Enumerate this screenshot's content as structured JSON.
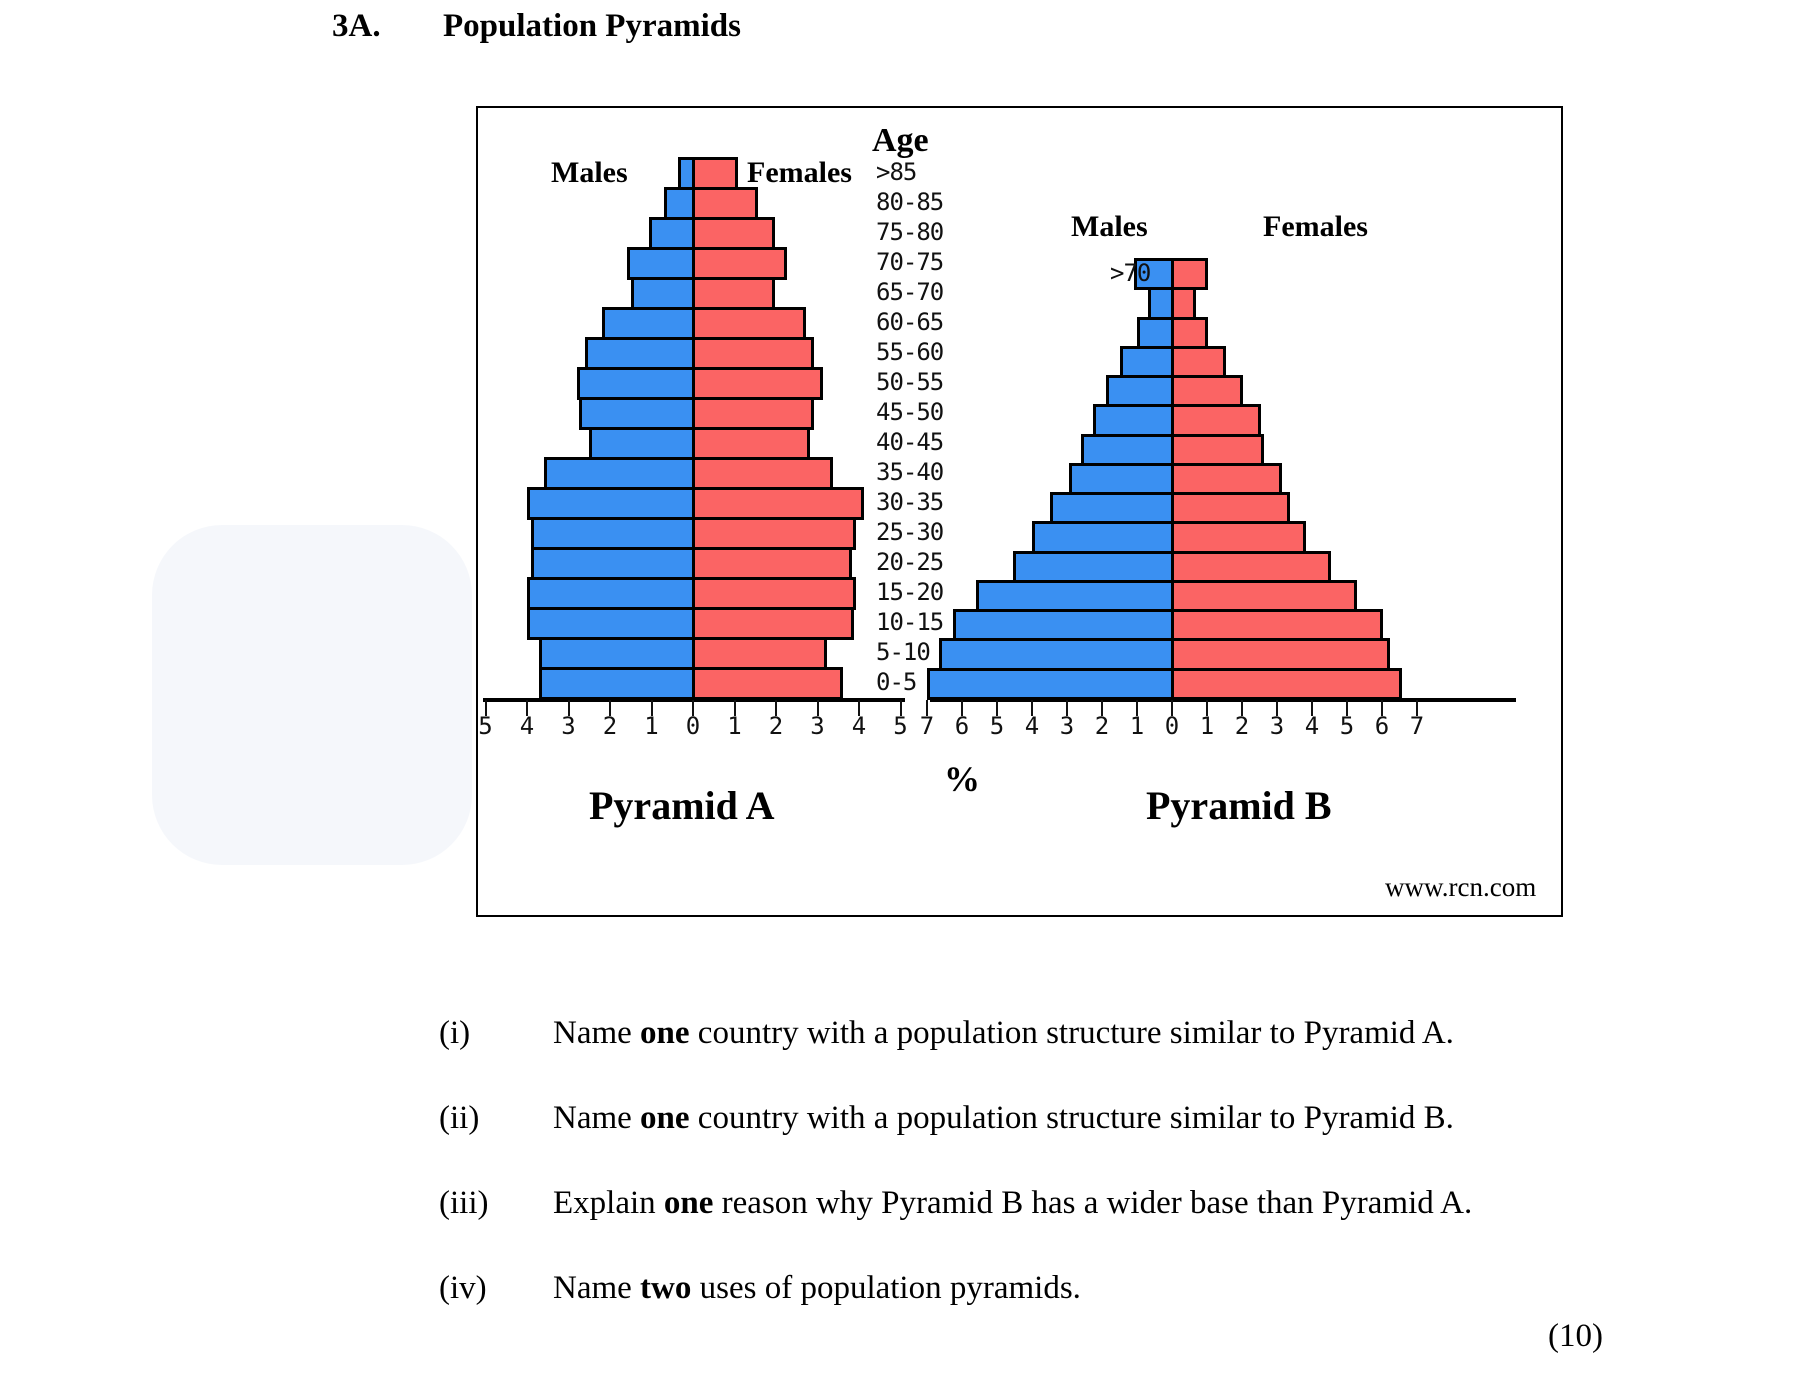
{
  "header": {
    "number": "3A.",
    "title": "Population Pyramids"
  },
  "figure": {
    "age_heading": "Age",
    "source": "www.rcn.com",
    "percent_label": "%",
    "colors": {
      "male": "#3a90f2",
      "female": "#fb6464"
    }
  },
  "chart_data": [
    {
      "type": "bar",
      "orientation": "horizontal-pyramid",
      "title": "Pyramid A",
      "xlabel": "%",
      "ylabel": "Age",
      "legend": [
        "Males",
        "Females"
      ],
      "xlim": [
        -5,
        5
      ],
      "x_ticks": [
        "5",
        "4",
        "3",
        "2",
        "1",
        "0",
        "1",
        "2",
        "3",
        "4",
        "5"
      ],
      "categories": [
        ">85",
        "80-85",
        "75-80",
        "70-75",
        "65-70",
        "60-65",
        "55-60",
        "50-55",
        "45-50",
        "40-45",
        "35-40",
        "30-35",
        "25-30",
        "20-25",
        "15-20",
        "10-15",
        "5-10",
        "0-5"
      ],
      "series": [
        {
          "name": "Males",
          "values": [
            0.35,
            0.7,
            1.05,
            1.6,
            1.5,
            2.2,
            2.6,
            2.8,
            2.75,
            2.5,
            3.6,
            4.0,
            3.9,
            3.9,
            4.0,
            4.0,
            3.7,
            3.7
          ]
        },
        {
          "name": "Females",
          "values": [
            1.05,
            1.55,
            1.95,
            2.25,
            1.95,
            2.7,
            2.9,
            3.1,
            2.9,
            2.8,
            3.35,
            4.1,
            3.9,
            3.8,
            3.9,
            3.85,
            3.2,
            3.6
          ]
        }
      ]
    },
    {
      "type": "bar",
      "orientation": "horizontal-pyramid",
      "title": "Pyramid B",
      "xlabel": "%",
      "ylabel": "Age",
      "legend": [
        "Males",
        "Females"
      ],
      "xlim": [
        -7,
        7
      ],
      "x_ticks": [
        "7",
        "6",
        "5",
        "4",
        "3",
        "2",
        "1",
        "0",
        "1",
        "2",
        "3",
        "4",
        "5",
        "6",
        "7"
      ],
      "categories": [
        ">70",
        "65-70",
        "60-65",
        "55-60",
        "50-55",
        "45-50",
        "40-45",
        "35-40",
        "30-35",
        "25-30",
        "20-25",
        "15-20",
        "10-15",
        "5-10",
        "0-5"
      ],
      "visible_category_labels": [
        ">70"
      ],
      "series": [
        {
          "name": "Males",
          "values": [
            1.1,
            0.7,
            1.0,
            1.5,
            1.9,
            2.25,
            2.6,
            2.95,
            3.5,
            4.0,
            4.55,
            5.6,
            6.25,
            6.65,
            7.0
          ]
        },
        {
          "name": "Females",
          "values": [
            1.0,
            0.65,
            1.0,
            1.5,
            2.0,
            2.5,
            2.6,
            3.1,
            3.35,
            3.8,
            4.5,
            5.25,
            6.0,
            6.2,
            6.55
          ]
        }
      ]
    }
  ],
  "questions": [
    {
      "num": "(i)",
      "pre": "Name ",
      "bold": "one",
      "post": " country with a population structure similar to Pyramid A."
    },
    {
      "num": "(ii)",
      "pre": "Name ",
      "bold": "one",
      "post": " country with a population structure similar to Pyramid B."
    },
    {
      "num": "(iii)",
      "pre": "Explain ",
      "bold": "one",
      "post": " reason why Pyramid B has a wider base than Pyramid A."
    },
    {
      "num": "(iv)",
      "pre": "Name ",
      "bold": "two",
      "post": " uses of population pyramids."
    }
  ],
  "marks": "(10)"
}
